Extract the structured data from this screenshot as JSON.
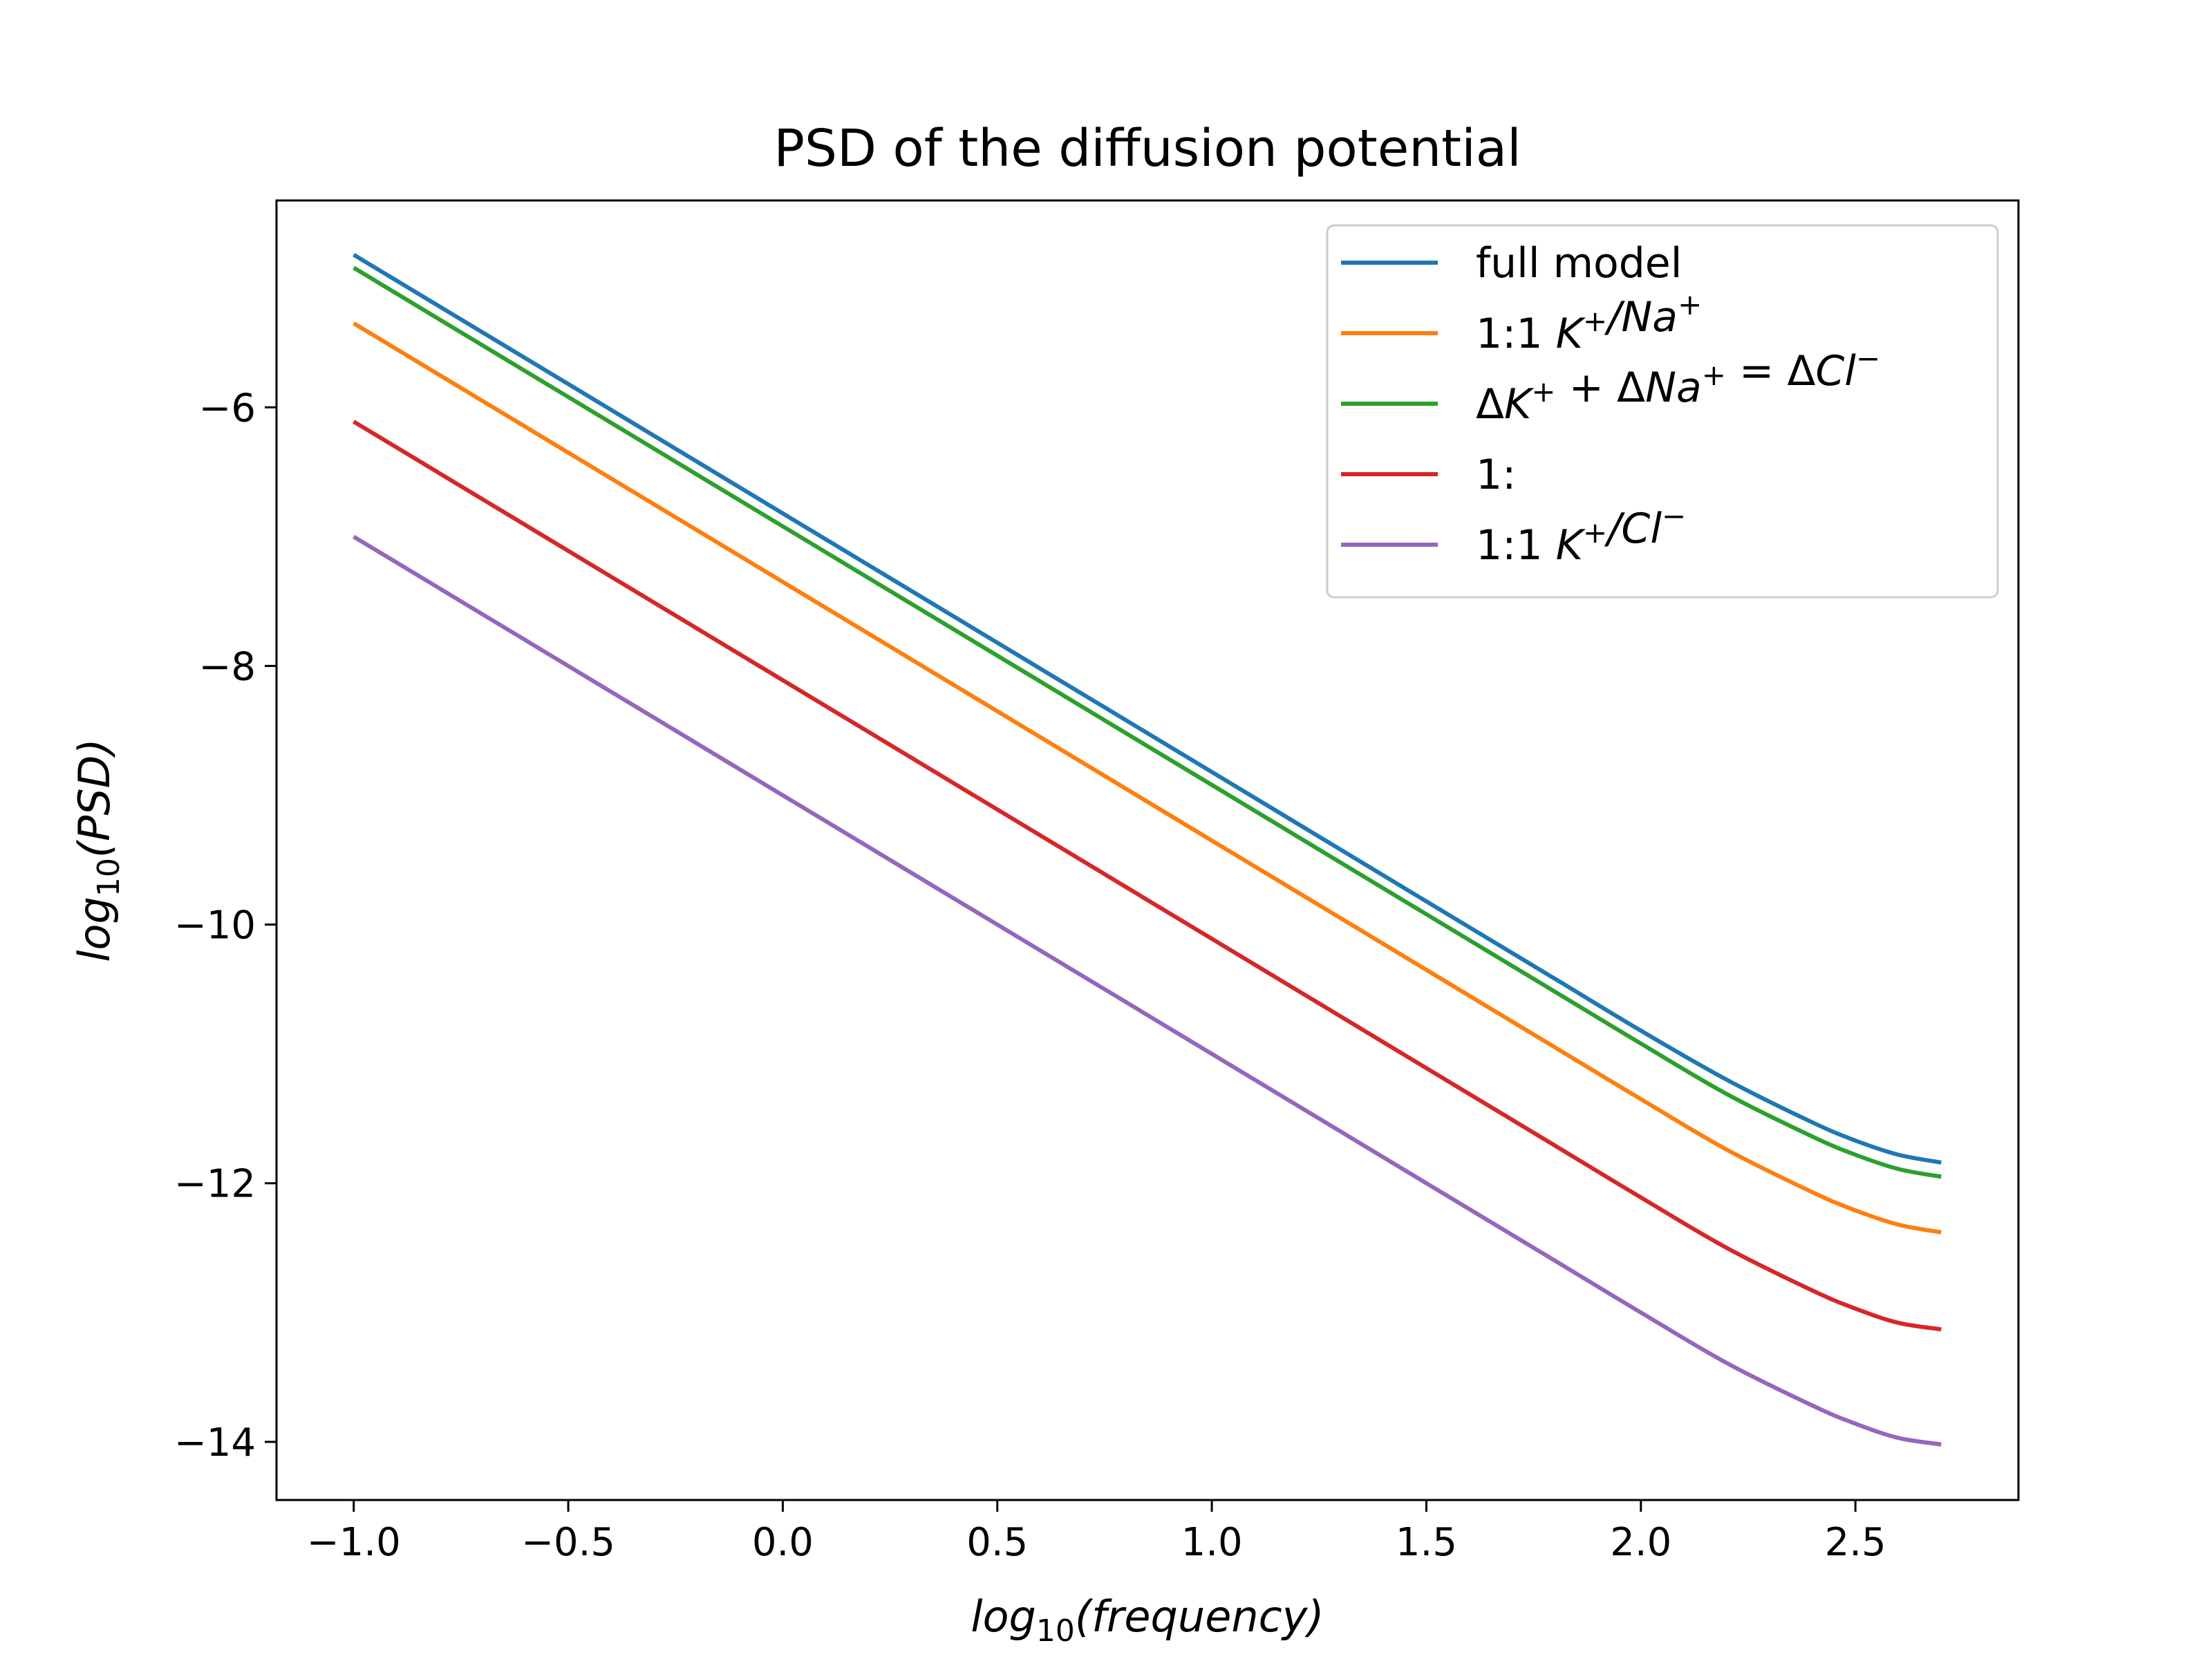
{
  "chart_data": {
    "type": "line",
    "title": "PSD of the diffusion potential",
    "xlabel": {
      "base": "log",
      "sub": "10",
      "arg": "(frequency)"
    },
    "ylabel": {
      "base": "log",
      "sub": "10",
      "arg": "(PSD)"
    },
    "xlim": [
      -1.18,
      2.88
    ],
    "ylim": [
      -14.45,
      -4.4
    ],
    "xticks": [
      -1.0,
      -0.5,
      0.0,
      0.5,
      1.0,
      1.5,
      2.0,
      2.5
    ],
    "xtick_labels": [
      "−1.0",
      "−0.5",
      "0.0",
      "0.5",
      "1.0",
      "1.5",
      "2.0",
      "2.5"
    ],
    "yticks": [
      -14,
      -12,
      -10,
      -8,
      -6
    ],
    "ytick_labels": [
      "−14",
      "−12",
      "−10",
      "−8",
      "−6"
    ],
    "grid": false,
    "legend_position": "top-right",
    "x": [
      -1.0,
      -0.5,
      0.0,
      0.5,
      1.0,
      1.5,
      1.8,
      2.0,
      2.2,
      2.4,
      2.5,
      2.6,
      2.7
    ],
    "series": [
      {
        "name": "full model",
        "color": "#1f77b4",
        "values": [
          -4.82,
          -5.82,
          -6.82,
          -7.82,
          -8.82,
          -9.82,
          -10.42,
          -10.82,
          -11.2,
          -11.53,
          -11.67,
          -11.78,
          -11.84
        ]
      },
      {
        "name": "1:1 K+/Na+",
        "color": "#ff7f0e",
        "values": [
          -5.35,
          -6.35,
          -7.35,
          -8.35,
          -9.35,
          -10.35,
          -10.95,
          -11.35,
          -11.74,
          -12.07,
          -12.21,
          -12.32,
          -12.38
        ]
      },
      {
        "name": "ΔK+ + ΔNa+ = ΔCl−",
        "color": "#2ca02c",
        "values": [
          -4.92,
          -5.92,
          -6.92,
          -7.92,
          -8.92,
          -9.92,
          -10.52,
          -10.92,
          -11.31,
          -11.64,
          -11.78,
          -11.89,
          -11.95
        ]
      },
      {
        "name": "1:",
        "color": "#d62728",
        "values": [
          -6.11,
          -7.11,
          -8.11,
          -9.11,
          -10.11,
          -11.11,
          -11.71,
          -12.11,
          -12.5,
          -12.83,
          -12.97,
          -13.08,
          -13.13
        ]
      },
      {
        "name": "1:1 K+/Cl−",
        "color": "#9467bd",
        "values": [
          -7.0,
          -8.0,
          -9.0,
          -10.0,
          -11.0,
          -12.0,
          -12.6,
          -13.0,
          -13.39,
          -13.72,
          -13.86,
          -13.97,
          -14.02
        ]
      }
    ]
  },
  "legend": {
    "entries": [
      {
        "parts": [
          {
            "t": "full model"
          }
        ]
      },
      {
        "parts": [
          {
            "t": "1:1 "
          },
          {
            "t": "K",
            "it": true
          },
          {
            "t": "+",
            "sup": true
          },
          {
            "t": "/",
            "it": true
          },
          {
            "t": "Na",
            "it": true
          },
          {
            "t": "+",
            "sup": true
          }
        ]
      },
      {
        "parts": [
          {
            "t": "Δ"
          },
          {
            "t": "K",
            "it": true
          },
          {
            "t": "+",
            "sup": true
          },
          {
            "t": " + Δ"
          },
          {
            "t": "Na",
            "it": true
          },
          {
            "t": "+",
            "sup": true
          },
          {
            "t": " = Δ"
          },
          {
            "t": "Cl",
            "it": true
          },
          {
            "t": "−",
            "sup": true
          }
        ]
      },
      {
        "parts": [
          {
            "t": "1:"
          }
        ]
      },
      {
        "parts": [
          {
            "t": "1:1 "
          },
          {
            "t": "K",
            "it": true
          },
          {
            "t": "+",
            "sup": true
          },
          {
            "t": "/",
            "it": true
          },
          {
            "t": "Cl",
            "it": true
          },
          {
            "t": "−",
            "sup": true
          }
        ]
      }
    ]
  }
}
